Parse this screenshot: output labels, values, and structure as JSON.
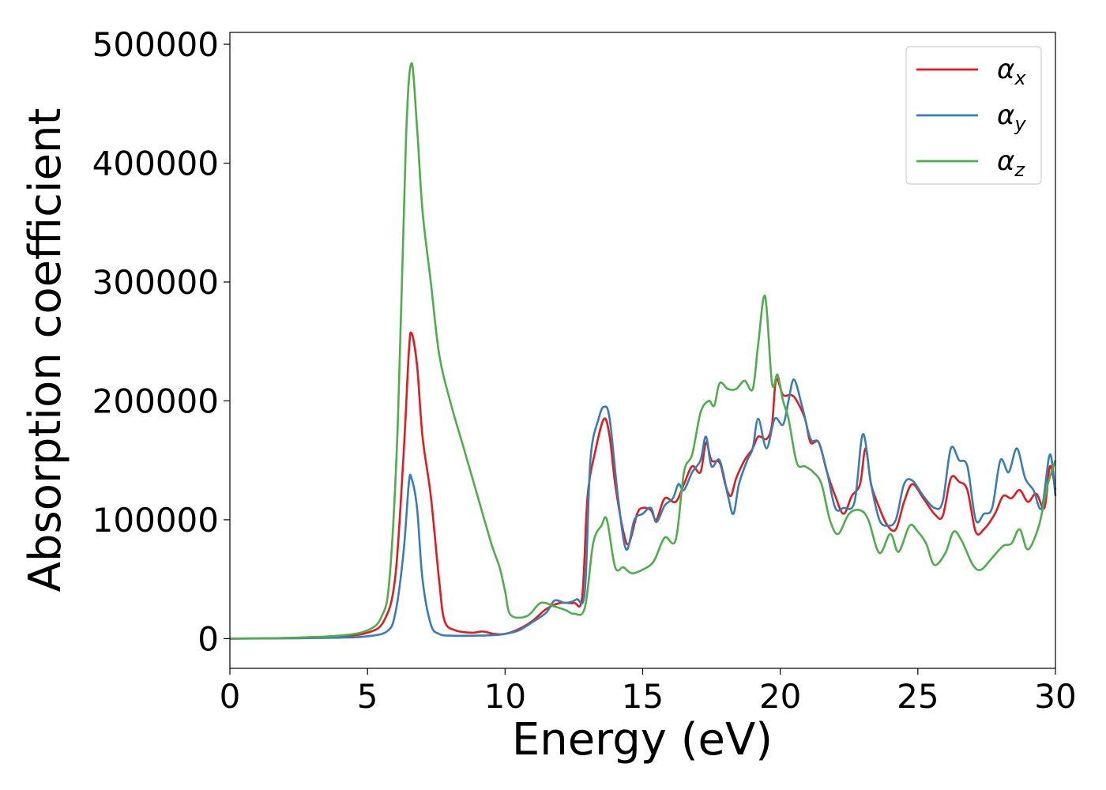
{
  "chart_data": {
    "type": "line",
    "xlabel": "Energy (eV)",
    "ylabel": "Absorption coefficient",
    "xlim": [
      0,
      30
    ],
    "ylim": [
      -25000,
      510000
    ],
    "xticks": [
      0,
      5,
      10,
      15,
      20,
      25,
      30
    ],
    "xtick_labels": [
      "0",
      "5",
      "10",
      "15",
      "20",
      "25",
      "30"
    ],
    "yticks": [
      0,
      100000,
      200000,
      300000,
      400000,
      500000
    ],
    "ytick_labels": [
      "0",
      "100000",
      "200000",
      "300000",
      "400000",
      "500000"
    ],
    "grid": false,
    "legend_position": "top-right",
    "series": [
      {
        "name": "αx",
        "symbol": "α",
        "subscript": "x",
        "color": "#e41a1c",
        "points": [
          [
            0,
            0
          ],
          [
            2,
            500
          ],
          [
            4,
            2000
          ],
          [
            5,
            5000
          ],
          [
            5.6,
            15000
          ],
          [
            6,
            50000
          ],
          [
            6.3,
            150000
          ],
          [
            6.5,
            240000
          ],
          [
            6.6,
            257000
          ],
          [
            6.8,
            230000
          ],
          [
            7,
            170000
          ],
          [
            7.3,
            120000
          ],
          [
            7.6,
            50000
          ],
          [
            7.8,
            15000
          ],
          [
            8.2,
            7000
          ],
          [
            8.8,
            5000
          ],
          [
            9.2,
            6000
          ],
          [
            9.6,
            4000
          ],
          [
            10,
            4000
          ],
          [
            10.5,
            8000
          ],
          [
            11,
            15000
          ],
          [
            11.5,
            25000
          ],
          [
            12,
            30000
          ],
          [
            12.5,
            30000
          ],
          [
            12.8,
            35000
          ],
          [
            13,
            120000
          ],
          [
            13.3,
            160000
          ],
          [
            13.6,
            185000
          ],
          [
            13.8,
            170000
          ],
          [
            14,
            130000
          ],
          [
            14.3,
            90000
          ],
          [
            14.5,
            80000
          ],
          [
            14.8,
            105000
          ],
          [
            15,
            110000
          ],
          [
            15.3,
            108000
          ],
          [
            15.5,
            100000
          ],
          [
            15.8,
            118000
          ],
          [
            16.2,
            115000
          ],
          [
            16.5,
            130000
          ],
          [
            16.8,
            145000
          ],
          [
            17.1,
            140000
          ],
          [
            17.3,
            165000
          ],
          [
            17.5,
            150000
          ],
          [
            17.8,
            148000
          ],
          [
            18,
            130000
          ],
          [
            18.2,
            120000
          ],
          [
            18.4,
            135000
          ],
          [
            18.7,
            150000
          ],
          [
            19,
            160000
          ],
          [
            19.2,
            170000
          ],
          [
            19.5,
            168000
          ],
          [
            19.7,
            180000
          ],
          [
            19.85,
            218000
          ],
          [
            20.1,
            205000
          ],
          [
            20.4,
            205000
          ],
          [
            20.6,
            200000
          ],
          [
            20.9,
            185000
          ],
          [
            21.1,
            165000
          ],
          [
            21.4,
            165000
          ],
          [
            21.7,
            140000
          ],
          [
            22,
            120000
          ],
          [
            22.3,
            105000
          ],
          [
            22.6,
            120000
          ],
          [
            22.9,
            130000
          ],
          [
            23.1,
            160000
          ],
          [
            23.3,
            130000
          ],
          [
            23.6,
            110000
          ],
          [
            23.9,
            95000
          ],
          [
            24.2,
            92000
          ],
          [
            24.5,
            115000
          ],
          [
            24.8,
            130000
          ],
          [
            25.2,
            118000
          ],
          [
            25.6,
            105000
          ],
          [
            25.9,
            103000
          ],
          [
            26.2,
            135000
          ],
          [
            26.5,
            132000
          ],
          [
            26.8,
            125000
          ],
          [
            27.1,
            90000
          ],
          [
            27.4,
            92000
          ],
          [
            27.8,
            105000
          ],
          [
            28.1,
            120000
          ],
          [
            28.4,
            118000
          ],
          [
            28.7,
            125000
          ],
          [
            29,
            115000
          ],
          [
            29.3,
            122000
          ],
          [
            29.6,
            110000
          ],
          [
            29.8,
            145000
          ],
          [
            30,
            125000
          ]
        ]
      },
      {
        "name": "αy",
        "symbol": "α",
        "subscript": "y",
        "color": "#377eb8",
        "points": [
          [
            0,
            0
          ],
          [
            2,
            200
          ],
          [
            4,
            800
          ],
          [
            5,
            2000
          ],
          [
            5.7,
            6000
          ],
          [
            6,
            20000
          ],
          [
            6.3,
            70000
          ],
          [
            6.5,
            130000
          ],
          [
            6.6,
            135000
          ],
          [
            6.8,
            110000
          ],
          [
            7,
            50000
          ],
          [
            7.3,
            12000
          ],
          [
            7.6,
            4000
          ],
          [
            8,
            2500
          ],
          [
            9,
            2500
          ],
          [
            9.6,
            3000
          ],
          [
            10,
            4000
          ],
          [
            10.5,
            7000
          ],
          [
            11,
            14000
          ],
          [
            11.5,
            22000
          ],
          [
            11.8,
            32000
          ],
          [
            12.2,
            30000
          ],
          [
            12.6,
            33000
          ],
          [
            12.9,
            40000
          ],
          [
            13.1,
            150000
          ],
          [
            13.4,
            185000
          ],
          [
            13.6,
            195000
          ],
          [
            13.8,
            185000
          ],
          [
            14.1,
            120000
          ],
          [
            14.4,
            75000
          ],
          [
            14.7,
            100000
          ],
          [
            15,
            105000
          ],
          [
            15.3,
            110000
          ],
          [
            15.5,
            98000
          ],
          [
            15.8,
            112000
          ],
          [
            16.1,
            118000
          ],
          [
            16.3,
            130000
          ],
          [
            16.5,
            125000
          ],
          [
            16.8,
            140000
          ],
          [
            17.1,
            150000
          ],
          [
            17.3,
            170000
          ],
          [
            17.5,
            145000
          ],
          [
            17.8,
            150000
          ],
          [
            18.1,
            120000
          ],
          [
            18.3,
            105000
          ],
          [
            18.5,
            130000
          ],
          [
            18.8,
            150000
          ],
          [
            19,
            160000
          ],
          [
            19.2,
            185000
          ],
          [
            19.5,
            160000
          ],
          [
            19.8,
            185000
          ],
          [
            20.1,
            180000
          ],
          [
            20.3,
            200000
          ],
          [
            20.5,
            218000
          ],
          [
            20.8,
            195000
          ],
          [
            21.1,
            168000
          ],
          [
            21.4,
            165000
          ],
          [
            21.7,
            140000
          ],
          [
            22,
            110000
          ],
          [
            22.3,
            110000
          ],
          [
            22.7,
            115000
          ],
          [
            23,
            172000
          ],
          [
            23.3,
            130000
          ],
          [
            23.6,
            100000
          ],
          [
            23.9,
            95000
          ],
          [
            24.2,
            100000
          ],
          [
            24.5,
            130000
          ],
          [
            24.8,
            133000
          ],
          [
            25.2,
            120000
          ],
          [
            25.6,
            110000
          ],
          [
            25.9,
            115000
          ],
          [
            26.2,
            160000
          ],
          [
            26.5,
            150000
          ],
          [
            26.8,
            145000
          ],
          [
            27.1,
            100000
          ],
          [
            27.4,
            105000
          ],
          [
            27.7,
            110000
          ],
          [
            28,
            150000
          ],
          [
            28.3,
            140000
          ],
          [
            28.6,
            160000
          ],
          [
            28.9,
            135000
          ],
          [
            29.2,
            125000
          ],
          [
            29.5,
            110000
          ],
          [
            29.8,
            155000
          ],
          [
            30,
            120000
          ]
        ]
      },
      {
        "name": "αz",
        "symbol": "α",
        "subscript": "z",
        "color": "#4daf4a",
        "points": [
          [
            0,
            0
          ],
          [
            2,
            600
          ],
          [
            4,
            2500
          ],
          [
            5,
            7000
          ],
          [
            5.5,
            18000
          ],
          [
            5.8,
            50000
          ],
          [
            6.1,
            180000
          ],
          [
            6.4,
            420000
          ],
          [
            6.6,
            484000
          ],
          [
            6.8,
            430000
          ],
          [
            7,
            360000
          ],
          [
            7.3,
            300000
          ],
          [
            7.6,
            240000
          ],
          [
            8,
            200000
          ],
          [
            8.5,
            160000
          ],
          [
            9,
            120000
          ],
          [
            9.5,
            80000
          ],
          [
            9.8,
            60000
          ],
          [
            10,
            40000
          ],
          [
            10.2,
            20000
          ],
          [
            10.8,
            19000
          ],
          [
            11.3,
            30000
          ],
          [
            11.8,
            27000
          ],
          [
            12.2,
            24000
          ],
          [
            12.5,
            21000
          ],
          [
            12.9,
            26000
          ],
          [
            13.2,
            80000
          ],
          [
            13.5,
            95000
          ],
          [
            13.7,
            100000
          ],
          [
            14,
            60000
          ],
          [
            14.3,
            60000
          ],
          [
            14.6,
            55000
          ],
          [
            15,
            58000
          ],
          [
            15.4,
            65000
          ],
          [
            15.8,
            85000
          ],
          [
            16.2,
            83000
          ],
          [
            16.5,
            140000
          ],
          [
            16.8,
            155000
          ],
          [
            17.1,
            190000
          ],
          [
            17.4,
            200000
          ],
          [
            17.6,
            196000
          ],
          [
            17.8,
            215000
          ],
          [
            18.1,
            210000
          ],
          [
            18.4,
            210000
          ],
          [
            18.7,
            217000
          ],
          [
            19,
            210000
          ],
          [
            19.2,
            248000
          ],
          [
            19.45,
            288000
          ],
          [
            19.7,
            215000
          ],
          [
            19.9,
            222000
          ],
          [
            20.1,
            200000
          ],
          [
            20.3,
            185000
          ],
          [
            20.6,
            148000
          ],
          [
            20.9,
            145000
          ],
          [
            21.2,
            140000
          ],
          [
            21.5,
            130000
          ],
          [
            21.8,
            100000
          ],
          [
            22.1,
            88000
          ],
          [
            22.5,
            105000
          ],
          [
            22.9,
            108000
          ],
          [
            23.2,
            100000
          ],
          [
            23.6,
            72000
          ],
          [
            24,
            88000
          ],
          [
            24.3,
            73000
          ],
          [
            24.7,
            95000
          ],
          [
            25,
            90000
          ],
          [
            25.3,
            80000
          ],
          [
            25.6,
            62000
          ],
          [
            26,
            72000
          ],
          [
            26.3,
            90000
          ],
          [
            26.6,
            82000
          ],
          [
            27,
            62000
          ],
          [
            27.3,
            58000
          ],
          [
            27.7,
            68000
          ],
          [
            28.1,
            78000
          ],
          [
            28.4,
            80000
          ],
          [
            28.7,
            92000
          ],
          [
            29,
            75000
          ],
          [
            29.4,
            95000
          ],
          [
            29.7,
            128000
          ],
          [
            30,
            150000
          ]
        ]
      }
    ]
  }
}
